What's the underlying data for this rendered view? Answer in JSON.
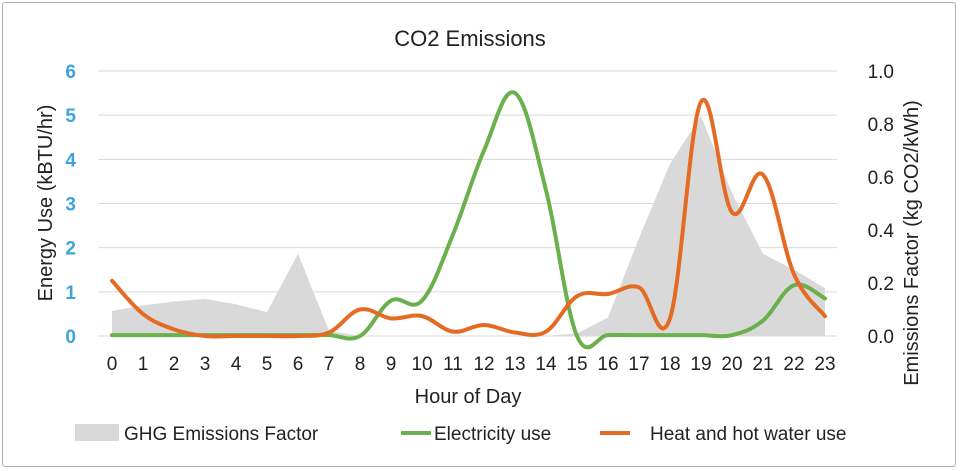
{
  "chart_data": {
    "type": "line",
    "title": "CO2 Emissions",
    "xlabel": "Hour of Day",
    "ylabel_left": "Energy Use (kBTU/hr)",
    "ylabel_right": "Emissions Factor (kg CO2/kWh)",
    "x": [
      0,
      1,
      2,
      3,
      4,
      5,
      6,
      7,
      8,
      9,
      10,
      11,
      12,
      13,
      14,
      15,
      16,
      17,
      18,
      19,
      20,
      21,
      22,
      23
    ],
    "x_tick_labels": [
      "0",
      "1",
      "2",
      "3",
      "4",
      "5",
      "6",
      "7",
      "8",
      "9",
      "10",
      "11",
      "12",
      "13",
      "14",
      "15",
      "16",
      "17",
      "18",
      "19",
      "20",
      "21",
      "22",
      "23"
    ],
    "ylim_left": [
      0,
      6
    ],
    "left_ticks": [
      "0",
      "1",
      "2",
      "3",
      "4",
      "5",
      "6"
    ],
    "ylim_right": [
      0,
      1.0
    ],
    "right_ticks": [
      "0.0",
      "0.2",
      "0.4",
      "0.6",
      "0.8",
      "1.0"
    ],
    "grid": true,
    "legend_position": "bottom",
    "series": [
      {
        "name": "GHG Emissions Factor",
        "kind": "area",
        "axis": "right",
        "color": "#d9d9d9",
        "values": [
          0.095,
          0.115,
          0.13,
          0.14,
          0.12,
          0.09,
          0.31,
          0.02,
          0.0,
          0.0,
          0.0,
          0.0,
          0.0,
          0.0,
          0.0,
          0.01,
          0.07,
          0.37,
          0.65,
          0.83,
          0.54,
          0.31,
          0.25,
          0.18
        ]
      },
      {
        "name": "Electricity use",
        "kind": "line",
        "axis": "left",
        "color": "#6ab04c",
        "values": [
          0.02,
          0.02,
          0.02,
          0.02,
          0.02,
          0.02,
          0.02,
          0.02,
          0.0,
          0.8,
          0.8,
          2.3,
          4.2,
          5.5,
          3.3,
          0.0,
          0.02,
          0.02,
          0.02,
          0.02,
          0.02,
          0.35,
          1.15,
          0.85
        ]
      },
      {
        "name": "Heat and hot water use",
        "kind": "line",
        "axis": "left",
        "color": "#e46b24",
        "values": [
          1.25,
          0.5,
          0.15,
          0.0,
          0.0,
          0.0,
          0.0,
          0.08,
          0.6,
          0.4,
          0.45,
          0.1,
          0.25,
          0.08,
          0.1,
          0.9,
          0.95,
          1.1,
          0.4,
          5.3,
          2.8,
          3.65,
          1.4,
          0.45
        ]
      }
    ]
  }
}
